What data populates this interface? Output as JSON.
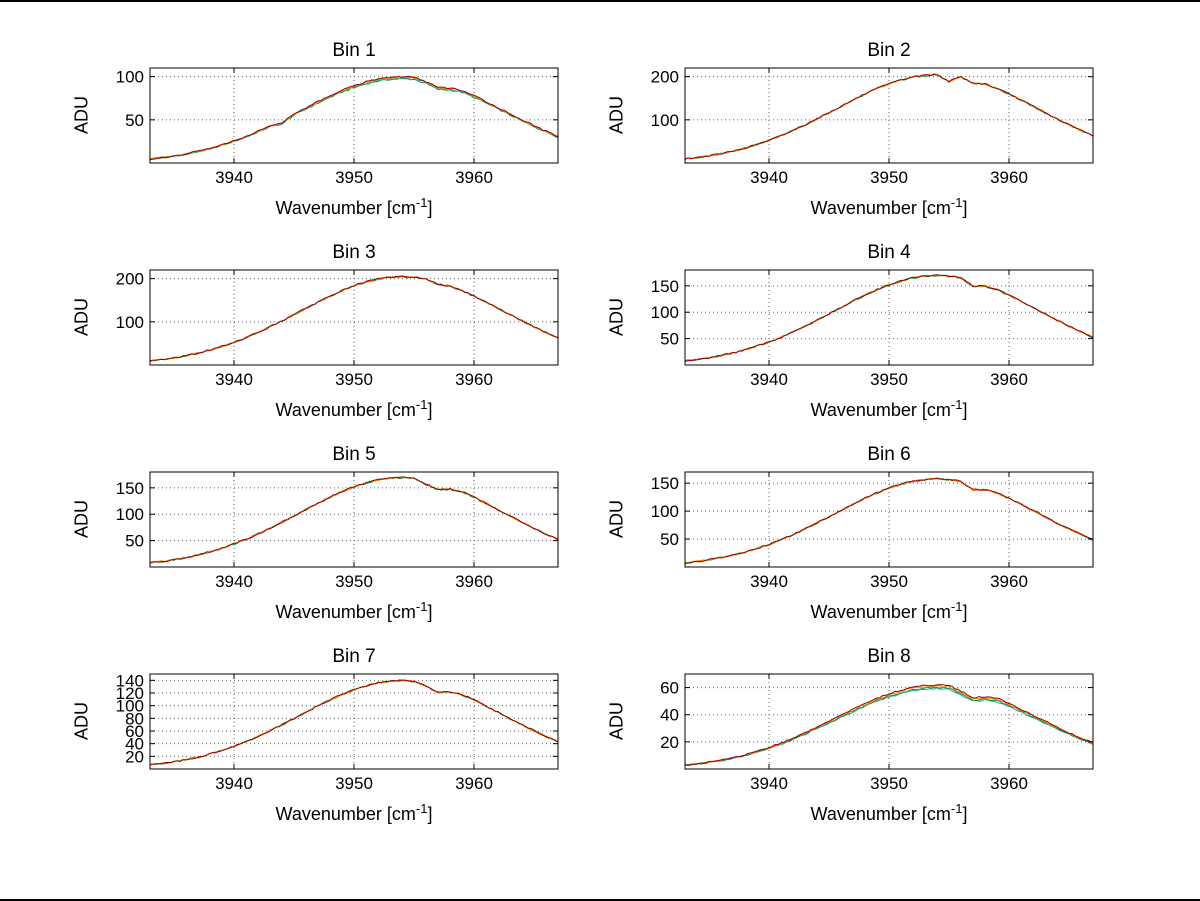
{
  "figure": {
    "background": "#ffffff",
    "frame_color": "#000000",
    "grid_color": "#666666"
  },
  "axis_labels": {
    "y": "ADU",
    "x_prefix": "Wavenumber [cm",
    "x_sup": "-1",
    "x_suffix": "]"
  },
  "chart_data": [
    {
      "type": "line",
      "title": "Bin 1",
      "xlabel": "Wavenumber [cm^-1]",
      "ylabel": "ADU",
      "xlim": [
        3933,
        3967
      ],
      "ylim": [
        0,
        110
      ],
      "xticks": [
        3940,
        3950,
        3960
      ],
      "yticks": [
        50,
        100
      ],
      "x_start": 3933,
      "x_step": 1,
      "grid": true,
      "noise": 0.9,
      "series": [
        {
          "name": "trace-green",
          "color": "#009944",
          "scale": 0.975
        },
        {
          "name": "trace-teal",
          "color": "#22aaaa",
          "scale": 0.985
        },
        {
          "name": "trace-orange",
          "color": "#ff8800",
          "scale": 0.992
        },
        {
          "name": "trace-darkred",
          "color": "#990000",
          "scale": 1.0
        }
      ],
      "values": [
        4.7,
        6.2,
        8.2,
        10.5,
        13.4,
        16.9,
        21.0,
        25.6,
        30.9,
        36.8,
        43.2,
        46.4,
        57.0,
        64.1,
        71.2,
        77.9,
        84.1,
        89.5,
        93.9,
        97.3,
        99.3,
        100.0,
        99.3,
        94.4,
        87.3,
        86.8,
        84.1,
        77.9,
        71.2,
        64.1,
        57.0,
        49.9,
        43.2,
        36.8,
        30.9
      ]
    },
    {
      "type": "line",
      "title": "Bin 2",
      "xlabel": "Wavenumber [cm^-1]",
      "ylabel": "ADU",
      "xlim": [
        3933,
        3967
      ],
      "ylim": [
        0,
        220
      ],
      "xticks": [
        3940,
        3950,
        3960
      ],
      "yticks": [
        100,
        200
      ],
      "x_start": 3933,
      "x_step": 1,
      "grid": true,
      "noise": 1.8,
      "series": [
        {
          "name": "trace-green",
          "color": "#009944",
          "scale": 0.996
        },
        {
          "name": "trace-orange",
          "color": "#ff8800",
          "scale": 0.998
        },
        {
          "name": "trace-darkred",
          "color": "#990000",
          "scale": 1.0
        }
      ],
      "values": [
        9.6,
        12.7,
        16.8,
        21.5,
        27.5,
        34.6,
        43.0,
        52.5,
        63.3,
        75.4,
        88.6,
        102.3,
        116.9,
        131.4,
        146.0,
        159.7,
        172.4,
        183.5,
        192.5,
        199.5,
        203.6,
        205.0,
        189.3,
        199.5,
        184.8,
        183.5,
        172.4,
        159.7,
        146.0,
        131.4,
        116.9,
        102.3,
        88.6,
        75.4,
        63.3
      ]
    },
    {
      "type": "line",
      "title": "Bin 3",
      "xlabel": "Wavenumber [cm^-1]",
      "ylabel": "ADU",
      "xlim": [
        3933,
        3967
      ],
      "ylim": [
        0,
        220
      ],
      "xticks": [
        3940,
        3950,
        3960
      ],
      "yticks": [
        100,
        200
      ],
      "x_start": 3933,
      "x_step": 1,
      "grid": true,
      "noise": 1.8,
      "series": [
        {
          "name": "trace-green",
          "color": "#009944",
          "scale": 0.996
        },
        {
          "name": "trace-orange",
          "color": "#ff8800",
          "scale": 0.998
        },
        {
          "name": "trace-darkred",
          "color": "#990000",
          "scale": 1.0
        }
      ],
      "values": [
        9.6,
        12.7,
        16.8,
        21.5,
        27.5,
        34.6,
        43.0,
        52.5,
        63.3,
        75.4,
        88.6,
        102.3,
        116.9,
        131.4,
        146.0,
        159.7,
        172.4,
        183.5,
        192.5,
        199.5,
        203.6,
        205.0,
        203.6,
        199.5,
        186.7,
        183.5,
        172.4,
        159.7,
        146.0,
        131.4,
        116.9,
        102.3,
        88.6,
        75.4,
        63.3
      ]
    },
    {
      "type": "line",
      "title": "Bin 4",
      "xlabel": "Wavenumber [cm^-1]",
      "ylabel": "ADU",
      "xlim": [
        3933,
        3967
      ],
      "ylim": [
        0,
        180
      ],
      "xticks": [
        3940,
        3950,
        3960
      ],
      "yticks": [
        50,
        100,
        150
      ],
      "x_start": 3933,
      "x_step": 1,
      "grid": true,
      "noise": 1.5,
      "series": [
        {
          "name": "trace-green",
          "color": "#009944",
          "scale": 0.996
        },
        {
          "name": "trace-orange",
          "color": "#ff8800",
          "scale": 0.998
        },
        {
          "name": "trace-darkred",
          "color": "#990000",
          "scale": 1.0
        }
      ],
      "values": [
        8.0,
        10.5,
        13.9,
        17.9,
        22.8,
        28.7,
        35.7,
        43.5,
        52.5,
        62.6,
        73.4,
        84.8,
        96.9,
        109.0,
        121.0,
        132.4,
        143.0,
        152.2,
        159.6,
        165.4,
        168.8,
        170.0,
        168.8,
        165.4,
        150.0,
        149.2,
        143.0,
        132.4,
        121.0,
        109.0,
        96.9,
        84.8,
        73.4,
        62.6,
        52.5
      ]
    },
    {
      "type": "line",
      "title": "Bin 5",
      "xlabel": "Wavenumber [cm^-1]",
      "ylabel": "ADU",
      "xlim": [
        3933,
        3967
      ],
      "ylim": [
        0,
        180
      ],
      "xticks": [
        3940,
        3950,
        3960
      ],
      "yticks": [
        50,
        100,
        150
      ],
      "x_start": 3933,
      "x_step": 1,
      "grid": true,
      "noise": 1.5,
      "series": [
        {
          "name": "trace-green",
          "color": "#009944",
          "scale": 0.996
        },
        {
          "name": "trace-orange",
          "color": "#ff8800",
          "scale": 0.998
        },
        {
          "name": "trace-darkred",
          "color": "#990000",
          "scale": 1.0
        }
      ],
      "values": [
        8.0,
        10.5,
        13.9,
        17.9,
        22.8,
        28.7,
        35.7,
        43.5,
        52.5,
        62.6,
        73.4,
        84.8,
        96.9,
        109.0,
        121.0,
        132.4,
        143.0,
        152.2,
        159.6,
        165.4,
        168.8,
        170.0,
        168.8,
        157.1,
        146.8,
        147.6,
        143.0,
        132.4,
        121.0,
        109.0,
        96.9,
        84.8,
        73.4,
        62.6,
        52.5
      ]
    },
    {
      "type": "line",
      "title": "Bin 6",
      "xlabel": "Wavenumber [cm^-1]",
      "ylabel": "ADU",
      "xlim": [
        3933,
        3967
      ],
      "ylim": [
        0,
        170
      ],
      "xticks": [
        3940,
        3950,
        3960
      ],
      "yticks": [
        50,
        100,
        150
      ],
      "x_start": 3933,
      "x_step": 1,
      "grid": true,
      "noise": 1.4,
      "series": [
        {
          "name": "trace-green",
          "color": "#009944",
          "scale": 0.996
        },
        {
          "name": "trace-orange",
          "color": "#ff8800",
          "scale": 0.998
        },
        {
          "name": "trace-darkred",
          "color": "#990000",
          "scale": 1.0
        }
      ],
      "values": [
        7.4,
        9.8,
        13.0,
        16.6,
        21.2,
        26.7,
        33.2,
        40.4,
        48.8,
        58.1,
        68.3,
        78.8,
        90.1,
        101.3,
        112.5,
        123.1,
        132.9,
        141.4,
        148.4,
        153.7,
        156.9,
        158.0,
        156.9,
        153.7,
        138.0,
        138.6,
        132.9,
        123.1,
        112.5,
        101.3,
        90.1,
        78.8,
        68.3,
        58.1,
        48.8
      ]
    },
    {
      "type": "line",
      "title": "Bin 7",
      "xlabel": "Wavenumber [cm^-1]",
      "ylabel": "ADU",
      "xlim": [
        3933,
        3967
      ],
      "ylim": [
        0,
        150
      ],
      "xticks": [
        3940,
        3950,
        3960
      ],
      "yticks": [
        20,
        40,
        60,
        80,
        100,
        120,
        140
      ],
      "x_start": 3933,
      "x_step": 1,
      "grid": true,
      "noise": 1.2,
      "series": [
        {
          "name": "trace-green",
          "color": "#009944",
          "scale": 0.996
        },
        {
          "name": "trace-orange",
          "color": "#ff8800",
          "scale": 0.998
        },
        {
          "name": "trace-darkred",
          "color": "#990000",
          "scale": 1.0
        }
      ],
      "values": [
        6.6,
        8.7,
        11.5,
        14.7,
        18.8,
        23.7,
        29.4,
        35.8,
        43.3,
        51.5,
        60.5,
        69.9,
        79.8,
        89.7,
        99.7,
        109.1,
        117.7,
        125.3,
        131.5,
        136.2,
        139.0,
        140.0,
        139.0,
        130.8,
        121.0,
        121.5,
        117.7,
        109.1,
        99.7,
        89.7,
        79.8,
        69.9,
        60.5,
        51.5,
        43.3
      ]
    },
    {
      "type": "line",
      "title": "Bin 8",
      "xlabel": "Wavenumber [cm^-1]",
      "ylabel": "ADU",
      "xlim": [
        3933,
        3967
      ],
      "ylim": [
        0,
        70
      ],
      "xticks": [
        3940,
        3950,
        3960
      ],
      "yticks": [
        20,
        40,
        60
      ],
      "x_start": 3933,
      "x_step": 1,
      "grid": true,
      "noise": 0.55,
      "series": [
        {
          "name": "trace-teal",
          "color": "#22aaaa",
          "scale": 0.955
        },
        {
          "name": "trace-green",
          "color": "#009944",
          "scale": 0.968
        },
        {
          "name": "trace-orange",
          "color": "#ff8800",
          "scale": 0.985
        },
        {
          "name": "trace-darkred",
          "color": "#990000",
          "scale": 1.0
        }
      ],
      "values": [
        2.9,
        3.9,
        5.1,
        6.5,
        8.3,
        10.5,
        13.0,
        15.9,
        19.2,
        22.8,
        26.8,
        30.9,
        35.3,
        39.7,
        44.1,
        48.3,
        52.1,
        55.5,
        58.2,
        60.3,
        61.6,
        62.0,
        61.6,
        57.3,
        52.4,
        53.3,
        52.1,
        48.3,
        44.1,
        39.7,
        35.3,
        30.9,
        26.8,
        22.8,
        19.2
      ]
    }
  ]
}
